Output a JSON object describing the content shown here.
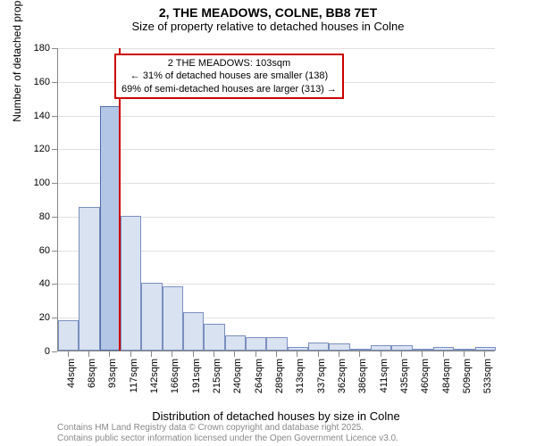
{
  "title": "2, THE MEADOWS, COLNE, BB8 7ET",
  "subtitle": "Size of property relative to detached houses in Colne",
  "chart": {
    "type": "histogram",
    "xlabel": "Distribution of detached houses by size in Colne",
    "ylabel": "Number of detached properties",
    "ylim": [
      0,
      180
    ],
    "ytick_step": 20,
    "categories": [
      "44sqm",
      "68sqm",
      "93sqm",
      "117sqm",
      "142sqm",
      "166sqm",
      "191sqm",
      "215sqm",
      "240sqm",
      "264sqm",
      "289sqm",
      "313sqm",
      "337sqm",
      "362sqm",
      "386sqm",
      "411sqm",
      "435sqm",
      "460sqm",
      "484sqm",
      "509sqm",
      "533sqm"
    ],
    "values": [
      18,
      85,
      145,
      80,
      40,
      38,
      23,
      16,
      9,
      8,
      8,
      2,
      5,
      4,
      1,
      3,
      3,
      0,
      2,
      0,
      2
    ],
    "highlight_index": 2,
    "bar_fill": "#d9e2f1",
    "bar_border": "#7a8fbf",
    "highlight_fill": "#b3c6e5",
    "highlight_border": "#4f6da6",
    "background_color": "#ffffff",
    "grid_color": "#e0e0e0",
    "axis_color": "#888888",
    "marker_value_sqm": 103,
    "marker_color": "#cc0000",
    "bar_width": 1.0,
    "title_fontsize": 14,
    "label_fontsize": 12,
    "tick_fontsize": 11
  },
  "annotation": {
    "line1": "2 THE MEADOWS: 103sqm",
    "line2": "← 31% of detached houses are smaller (138)",
    "line3": "69% of semi-detached houses are larger (313) →",
    "border_color": "#cc0000"
  },
  "attribution": {
    "line1": "Contains HM Land Registry data © Crown copyright and database right 2025.",
    "line2": "Contains public sector information licensed under the Open Government Licence v3.0."
  }
}
